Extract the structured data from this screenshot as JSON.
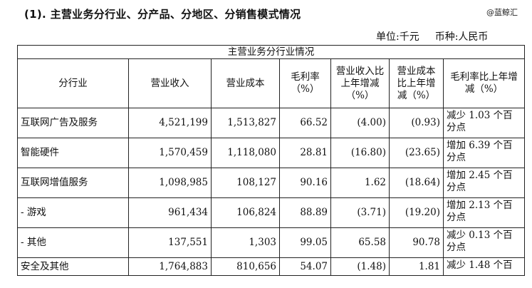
{
  "heading": "(1). 主营业务分行业、分产品、分地区、分销售模式情况",
  "watermark": "@蓝鲸汇",
  "units": {
    "unit_label": "单位:千元",
    "currency_label": "币种:人民币"
  },
  "table": {
    "title": "主营业务分行业情况",
    "columns": [
      "分行业",
      "营业收入",
      "营业成本",
      "毛利率（%）",
      "营业收入比上年增减（%）",
      "营业成本比上年增减（%）",
      "毛利率比上年增减（%）"
    ],
    "rows": [
      {
        "industry": "互联网广告及服务",
        "revenue": "4,521,199",
        "cost": "1,513,827",
        "margin": "66.52",
        "rev_change": "(4.00)",
        "cost_change": "(0.93)",
        "margin_change": "减少 1.03 个百分点"
      },
      {
        "industry": "智能硬件",
        "revenue": "1,570,459",
        "cost": "1,118,080",
        "margin": "28.81",
        "rev_change": "(16.80)",
        "cost_change": "(23.65)",
        "margin_change": "增加 6.39 个百分点"
      },
      {
        "industry": "互联网增值服务",
        "revenue": "1,098,985",
        "cost": "108,127",
        "margin": "90.16",
        "rev_change": "1.62",
        "cost_change": "(18.64)",
        "margin_change": "增加 2.45 个百分点"
      },
      {
        "industry": "- 游戏",
        "revenue": "961,434",
        "cost": "106,824",
        "margin": "88.89",
        "rev_change": "(3.71)",
        "cost_change": "(19.20)",
        "margin_change": "增加 2.13 个百分点"
      },
      {
        "industry": "- 其他",
        "revenue": "137,551",
        "cost": "1,303",
        "margin": "99.05",
        "rev_change": "65.58",
        "cost_change": "90.78",
        "margin_change": "减少 0.13 个百分点"
      },
      {
        "industry": "安全及其他",
        "revenue": "1,764,883",
        "cost": "810,656",
        "margin": "54.07",
        "rev_change": "(1.48)",
        "cost_change": "1.81",
        "margin_change": "减少 1.48 个百"
      }
    ]
  }
}
